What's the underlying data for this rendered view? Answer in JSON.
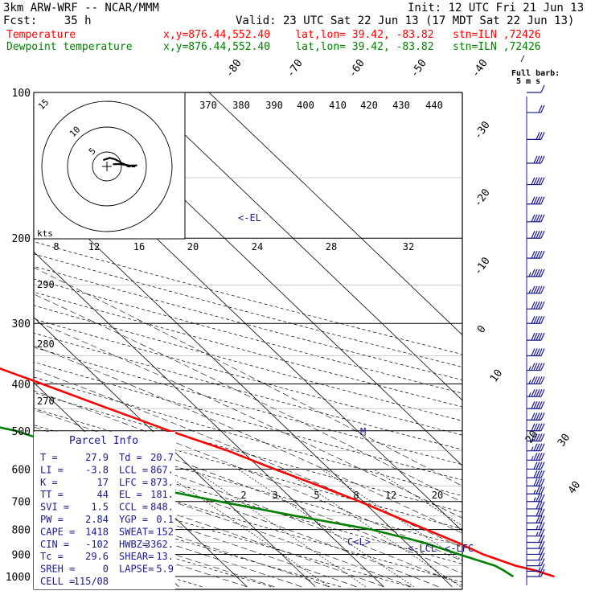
{
  "header": {
    "title": "3km ARW-WRF -- NCAR/MMM",
    "init": "Init: 12 UTC Fri 21 Jun 13",
    "fcst": "Fcst:    35 h",
    "valid": "Valid: 23 UTC Sat 22 Jun 13 (17 MDT Sat 22 Jun 13)",
    "temp_label": "Temperature",
    "dew_label": "Dewpoint temperature",
    "temp_info": "x,y=876.44,552.40    lat,lon= 39.42, -83.82   stn=ILN ,72426",
    "dew_info": "x,y=876.44,552.40    lat,lon= 39.42, -83.82   stn=ILN ,72426"
  },
  "colors": {
    "temperature": "#ff0000",
    "dewpoint": "#008000",
    "info": "#1a1a8c",
    "barbs": "#1a1a8c"
  },
  "chart_data": {
    "type": "line",
    "pressure_ticks": [
      "100",
      "200",
      "300",
      "400",
      "500",
      "600",
      "700",
      "800",
      "900",
      "1000"
    ],
    "temp_ticks": [
      "-80",
      "-70",
      "-60",
      "-50",
      "-40",
      "-30",
      "-20",
      "-10",
      "0",
      "10",
      "20",
      "30",
      "40"
    ],
    "theta_labels": [
      "370",
      "380",
      "390",
      "400",
      "410",
      "420",
      "430",
      "440"
    ],
    "hodo_speed_labels": [
      "8",
      "12",
      "16",
      "20",
      "24",
      "28",
      "32"
    ],
    "hodo_ring_labels": [
      "5",
      "10",
      "15"
    ],
    "hodo_units": "kts",
    "hodo_dir_labels": [
      "290",
      "280",
      "270"
    ],
    "mixing_ratio_labels": [
      "2",
      "3",
      "5",
      "8",
      "12",
      "20"
    ],
    "el_label": "<-EL",
    "lcl_label": "<-LCL",
    "lfc_label": "<-LFC",
    "ccl_label": "C<L>",
    "m_label": "M",
    "full_barb_label": "Full barb:",
    "full_barb_units": "5 m s",
    "series": [
      {
        "name": "Temperature",
        "points": [
          [
            1000,
            26.5
          ],
          [
            970,
            24.5
          ],
          [
            950,
            22.5
          ],
          [
            900,
            19.5
          ],
          [
            850,
            17.5
          ],
          [
            800,
            15.0
          ],
          [
            750,
            12.3
          ],
          [
            700,
            9.5
          ],
          [
            650,
            6.0
          ],
          [
            600,
            2.0
          ],
          [
            550,
            -2.0
          ],
          [
            500,
            -7.5
          ],
          [
            450,
            -13.0
          ],
          [
            400,
            -19.0
          ],
          [
            350,
            -26.0
          ],
          [
            300,
            -33.5
          ],
          [
            250,
            -43.0
          ],
          [
            220,
            -49.0
          ],
          [
            200,
            -53.0
          ],
          [
            180,
            -55.0
          ],
          [
            160,
            -56.0
          ],
          [
            145,
            -58.5
          ],
          [
            130,
            -60.5
          ],
          [
            115,
            -65.5
          ],
          [
            100,
            -70.5
          ]
        ]
      },
      {
        "name": "Dewpoint temperature",
        "points": [
          [
            1000,
            20.5
          ],
          [
            970,
            20.0
          ],
          [
            950,
            19.5
          ],
          [
            900,
            16.0
          ],
          [
            850,
            12.5
          ],
          [
            800,
            7.0
          ],
          [
            750,
            -2.0
          ],
          [
            700,
            -11.0
          ],
          [
            650,
            -20.0
          ],
          [
            600,
            -22.0
          ],
          [
            560,
            -23.0
          ],
          [
            500,
            -30.0
          ],
          [
            470,
            -37.0
          ],
          [
            450,
            -40.0
          ],
          [
            430,
            -32.0
          ],
          [
            400,
            -27.0
          ],
          [
            350,
            -36.5
          ],
          [
            300,
            -45.5
          ],
          [
            270,
            -50.0
          ],
          [
            250,
            -54.0
          ],
          [
            220,
            -58.0
          ],
          [
            200,
            -62.0
          ],
          [
            180,
            -65.0
          ],
          [
            140,
            -69.0
          ],
          [
            115,
            -75.0
          ],
          [
            100,
            -80.0
          ]
        ]
      }
    ],
    "winds": [
      [
        1000,
        8,
        150
      ],
      [
        975,
        8,
        170
      ],
      [
        950,
        9,
        190
      ],
      [
        925,
        10,
        200
      ],
      [
        900,
        10,
        210
      ],
      [
        875,
        11,
        220
      ],
      [
        850,
        12,
        230
      ],
      [
        825,
        13,
        240
      ],
      [
        800,
        14,
        245
      ],
      [
        775,
        15,
        250
      ],
      [
        750,
        16,
        255
      ],
      [
        725,
        17,
        260
      ],
      [
        700,
        18,
        260
      ],
      [
        675,
        19,
        262
      ],
      [
        650,
        20,
        265
      ],
      [
        625,
        21,
        265
      ],
      [
        600,
        22,
        268
      ],
      [
        575,
        23,
        270
      ],
      [
        550,
        24,
        270
      ],
      [
        525,
        25,
        270
      ],
      [
        500,
        25,
        268
      ],
      [
        475,
        26,
        268
      ],
      [
        450,
        27,
        268
      ],
      [
        425,
        28,
        270
      ],
      [
        400,
        28,
        270
      ],
      [
        375,
        29,
        270
      ],
      [
        350,
        30,
        270
      ],
      [
        325,
        30,
        270
      ],
      [
        300,
        31,
        268
      ],
      [
        280,
        32,
        268
      ],
      [
        260,
        33,
        268
      ],
      [
        240,
        33,
        268
      ],
      [
        220,
        32,
        268
      ],
      [
        200,
        32,
        268
      ],
      [
        185,
        30,
        268
      ],
      [
        170,
        27,
        268
      ],
      [
        155,
        25,
        268
      ],
      [
        140,
        20,
        265
      ],
      [
        125,
        15,
        260
      ],
      [
        110,
        10,
        255
      ],
      [
        100,
        7,
        250
      ]
    ]
  },
  "parcel_info": {
    "title": "Parcel Info",
    "rows": [
      [
        "T  =",
        "27.9",
        "Td =",
        "20.7"
      ],
      [
        "LI =",
        "-3.8",
        "LCL =",
        "867."
      ],
      [
        "K  =",
        "17",
        "LFC =",
        "873."
      ],
      [
        "TT =",
        "44",
        "EL  =",
        "181."
      ],
      [
        "SVI =",
        "1.5",
        "CCL =",
        "848."
      ],
      [
        "PW =",
        "2.84",
        "YGP =",
        "0.1"
      ],
      [
        "CAPE =",
        "1418",
        "SWEAT=",
        "152"
      ],
      [
        "CIN =",
        "-102",
        "HWBZ=",
        "3362."
      ],
      [
        "Tc =",
        "29.6",
        "SHEAR=",
        "13."
      ],
      [
        "SREH =",
        "0",
        "LAPSE=",
        "5.9"
      ],
      [
        "CELL =",
        "115/08",
        "",
        ""
      ]
    ]
  }
}
